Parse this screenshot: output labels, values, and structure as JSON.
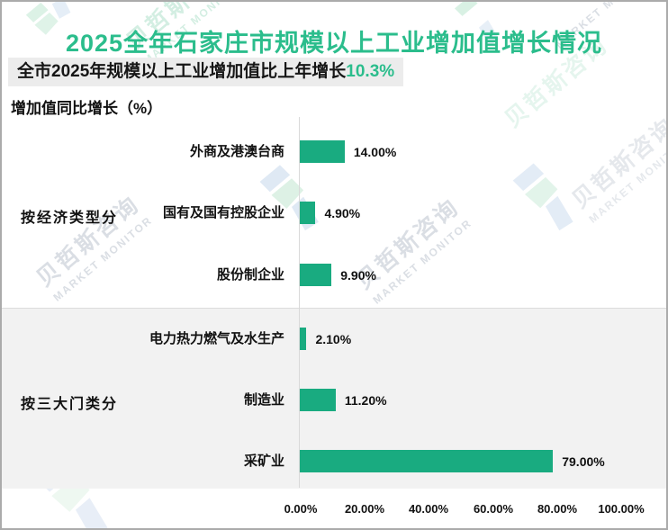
{
  "header": {
    "title": "2025全年石家庄市规模以上工业增加值增长情况",
    "subtitle_prefix": "全市2025年规模以上工业增加值比上年增长",
    "subtitle_highlight": "10.3%",
    "axis_note": "增加值同比增长（%）"
  },
  "watermark": {
    "cn": "贝哲斯咨询",
    "en": "MARKET MONITOR"
  },
  "colors": {
    "accent_green": "#2BBD8C",
    "bar_green": "#19AB80",
    "subtitle_bg": "#ECECEC",
    "band_bg": "#F2F2F2",
    "axis_line": "#D9D9D9"
  },
  "chart_data": {
    "type": "bar",
    "orientation": "horizontal",
    "title": "增加值同比增长（%）",
    "categories": [
      "外商及港澳台商",
      "国有及国有控股企业",
      "股份制企业",
      "电力热力燃气及水生产",
      "制造业",
      "采矿业"
    ],
    "values": [
      14.0,
      4.9,
      9.9,
      2.1,
      11.2,
      79.0
    ],
    "value_labels": [
      "14.00%",
      "4.90%",
      "9.90%",
      "2.10%",
      "11.20%",
      "79.00%"
    ],
    "group_labels": [
      "按经济类型分",
      "按三大门类分"
    ],
    "group_assignment": [
      [
        0,
        1,
        2
      ],
      [
        3,
        4,
        5
      ]
    ],
    "x_ticks": [
      "0.00%",
      "20.00%",
      "40.00%",
      "60.00%",
      "80.00%",
      "100.00%"
    ],
    "xlim": [
      0,
      100
    ],
    "grid": false,
    "legend": false
  }
}
